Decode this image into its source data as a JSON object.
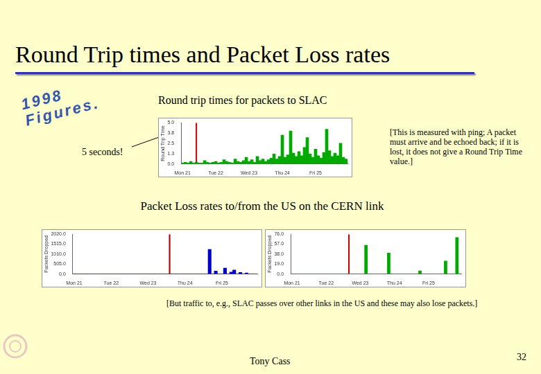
{
  "slide": {
    "title": "Round Trip times and Packet Loss rates",
    "stamp": [
      "1998",
      "Figures."
    ],
    "callout": "5 seconds!",
    "note_rtt": "[This is measured with ping; A packet must arrive and be echoed back; if it is lost, it does not give a Round Trip Time value.]",
    "heading_loss": "Packet Loss rates to/from the US on the CERN link",
    "note_loss": "[But traffic to, e.g., SLAC passes over other links in the US and these may also lose packets.]",
    "author": "Tony Cass",
    "page": "32"
  },
  "chart_data": [
    {
      "type": "bar",
      "title": "Round trip times for packets to SLAC",
      "y_label": "Round Trip Time",
      "categories": [
        "Mon 21",
        null,
        null,
        null,
        null,
        null,
        null,
        null,
        null,
        null,
        null,
        null,
        "Tue 22",
        null,
        null,
        null,
        null,
        null,
        null,
        null,
        null,
        null,
        null,
        null,
        "Wed 23",
        null,
        null,
        null,
        null,
        null,
        null,
        null,
        null,
        null,
        null,
        null,
        "Thu 24",
        null,
        null,
        null,
        null,
        null,
        null,
        null,
        null,
        null,
        null,
        null,
        "Fri 25",
        null,
        null,
        null,
        null,
        null,
        null,
        null,
        null,
        null,
        null,
        null
      ],
      "series": [
        {
          "color": "#00aa00",
          "values": [
            0.1,
            0.2,
            0.1,
            0.3,
            0.1,
            0.2,
            0.1,
            0.1,
            0.4,
            0.2,
            0.1,
            0.2,
            0.3,
            0.1,
            0.2,
            0.5,
            0.3,
            0.2,
            0.1,
            0.6,
            0.3,
            0.2,
            0.4,
            0.8,
            0.3,
            0.5,
            0.2,
            0.9,
            0.4,
            0.6,
            0.3,
            0.5,
            0.7,
            1.2,
            0.6,
            0.9,
            3.5,
            0.8,
            1.1,
            4.0,
            1.3,
            0.9,
            1.5,
            1.0,
            2.0,
            3.2,
            1.2,
            0.8,
            1.8,
            1.0,
            0.7,
            1.4,
            4.2,
            1.6,
            0.9,
            1.3,
            1.0,
            2.5,
            0.8,
            0.6
          ]
        },
        {
          "color": "#cc0000",
          "values": [
            null,
            null,
            null,
            null,
            null,
            5,
            null,
            null,
            null,
            null,
            null,
            null,
            null,
            null,
            null,
            null,
            null,
            null,
            null,
            null,
            null,
            null,
            null,
            null,
            null,
            null,
            null,
            null,
            null,
            null,
            null,
            null,
            null,
            null,
            null,
            null,
            null,
            null,
            null,
            null,
            null,
            null,
            null,
            null,
            null,
            null,
            null,
            null,
            null,
            null,
            null,
            null,
            null,
            null,
            null,
            null,
            null,
            null,
            null,
            null
          ]
        }
      ],
      "ylim": [
        0,
        5
      ],
      "yticks": [
        {
          "value": 0,
          "label": "0.0"
        },
        {
          "value": 1.25,
          "label": "1.3"
        },
        {
          "value": 2.5,
          "label": "2.5"
        },
        {
          "value": 3.75,
          "label": "3.8"
        },
        {
          "value": 5,
          "label": "5.0"
        }
      ],
      "grid": false
    },
    {
      "type": "bar",
      "y_label": "Packets Dropped",
      "categories": [
        "Mon 21",
        null,
        null,
        null,
        null,
        null,
        null,
        null,
        null,
        null,
        null,
        null,
        "Tue 22",
        null,
        null,
        null,
        null,
        null,
        null,
        null,
        null,
        null,
        null,
        null,
        "Wed 23",
        null,
        null,
        null,
        null,
        null,
        null,
        null,
        null,
        null,
        null,
        null,
        "Thu 24",
        null,
        null,
        null,
        null,
        null,
        null,
        null,
        null,
        null,
        null,
        null,
        "Fri 25",
        null,
        null,
        null,
        null,
        null,
        null,
        null,
        null,
        null,
        null,
        null
      ],
      "series": [
        {
          "color": "#0000cc",
          "values": [
            0,
            0,
            0,
            0,
            0,
            0,
            0,
            0,
            0,
            0,
            0,
            0,
            0,
            0,
            0,
            0,
            0,
            0,
            0,
            0,
            0,
            0,
            0,
            0,
            0,
            0,
            0,
            0,
            0,
            0,
            0,
            0,
            0,
            0,
            0,
            0,
            0,
            0,
            0,
            0,
            0,
            0,
            0,
            0,
            1250,
            0,
            150,
            0,
            0,
            300,
            0,
            100,
            200,
            0,
            80,
            0,
            50,
            0,
            0,
            0
          ]
        },
        {
          "color": "#cc0000",
          "values": [
            null,
            null,
            null,
            null,
            null,
            null,
            null,
            null,
            null,
            null,
            null,
            null,
            null,
            null,
            null,
            null,
            null,
            null,
            null,
            null,
            null,
            null,
            null,
            null,
            null,
            null,
            null,
            null,
            null,
            null,
            null,
            2020,
            null,
            null,
            null,
            null,
            null,
            null,
            null,
            null,
            null,
            null,
            null,
            null,
            null,
            null,
            null,
            null,
            null,
            null,
            null,
            null,
            null,
            null,
            null,
            null,
            null,
            null,
            null,
            null
          ]
        }
      ],
      "ylim": [
        0,
        2020
      ],
      "yticks": [
        {
          "value": 0,
          "label": "0.0"
        },
        {
          "value": 505,
          "label": "505.0"
        },
        {
          "value": 1010,
          "label": "1010.0"
        },
        {
          "value": 1515,
          "label": "1515.0"
        },
        {
          "value": 2020,
          "label": "2020.0"
        }
      ],
      "grid": false
    },
    {
      "type": "bar",
      "y_label": "Packets Dropped",
      "categories": [
        "Mon 21",
        null,
        null,
        null,
        null,
        null,
        null,
        null,
        null,
        null,
        null,
        null,
        "Tue 22",
        null,
        null,
        null,
        null,
        null,
        null,
        null,
        null,
        null,
        null,
        null,
        "Wed 23",
        null,
        null,
        null,
        null,
        null,
        null,
        null,
        null,
        null,
        null,
        null,
        "Thu 24",
        null,
        null,
        null,
        null,
        null,
        null,
        null,
        null,
        null,
        null,
        null,
        "Fri 25",
        null,
        null,
        null,
        null,
        null,
        null,
        null,
        null,
        null,
        null,
        null
      ],
      "series": [
        {
          "color": "#00aa00",
          "values": [
            0,
            0,
            0,
            0,
            0,
            0,
            0,
            0,
            0,
            0,
            0,
            0,
            0,
            0,
            0,
            0,
            0,
            0,
            0,
            0,
            0,
            0,
            0,
            0,
            0,
            0,
            55,
            0,
            0,
            0,
            0,
            0,
            0,
            0,
            40,
            0,
            0,
            0,
            0,
            0,
            0,
            0,
            0,
            0,
            0,
            6,
            0,
            0,
            0,
            0,
            0,
            0,
            0,
            0,
            25,
            0,
            0,
            0,
            70,
            0
          ]
        },
        {
          "color": "#cc0000",
          "values": [
            null,
            null,
            null,
            null,
            null,
            null,
            null,
            null,
            null,
            null,
            null,
            null,
            null,
            null,
            null,
            null,
            null,
            null,
            null,
            null,
            76,
            null,
            null,
            null,
            null,
            null,
            null,
            null,
            null,
            null,
            null,
            null,
            null,
            null,
            null,
            null,
            null,
            null,
            null,
            null,
            null,
            null,
            null,
            null,
            null,
            null,
            null,
            null,
            null,
            null,
            null,
            null,
            null,
            null,
            null,
            null,
            null,
            null,
            null,
            null
          ]
        }
      ],
      "ylim": [
        0,
        76
      ],
      "yticks": [
        {
          "value": 0,
          "label": "0.0"
        },
        {
          "value": 19,
          "label": "19.0"
        },
        {
          "value": 38,
          "label": "38.0"
        },
        {
          "value": 57,
          "label": "57.0"
        },
        {
          "value": 76,
          "label": "76.0"
        }
      ],
      "grid": false
    }
  ]
}
